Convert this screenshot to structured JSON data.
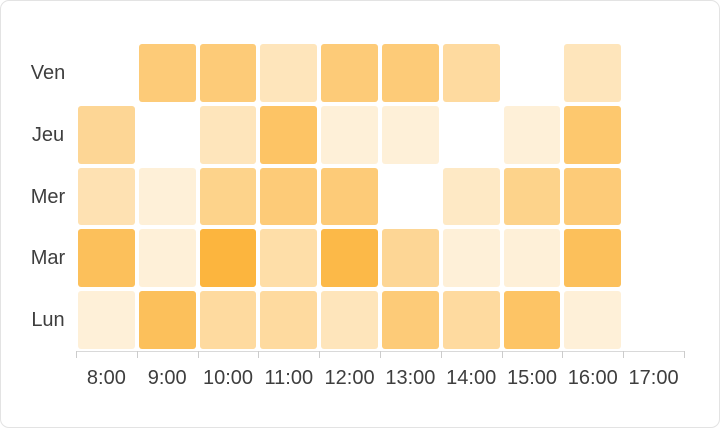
{
  "card": {
    "background": "#ffffff",
    "border_color": "#e3e3e3"
  },
  "chart_data": {
    "type": "heatmap",
    "title": "",
    "xlabel": "",
    "ylabel": "",
    "x_categories": [
      "8:00",
      "9:00",
      "10:00",
      "11:00",
      "12:00",
      "13:00",
      "14:00",
      "15:00",
      "16:00",
      "17:00"
    ],
    "y_categories_top_to_bottom": [
      "Ven",
      "Jeu",
      "Mer",
      "Mar",
      "Lun"
    ],
    "series": [
      {
        "name": "Ven",
        "values": [
          null,
          7,
          7,
          3.5,
          7,
          7,
          5,
          null,
          3.5,
          null
        ]
      },
      {
        "name": "Jeu",
        "values": [
          5.5,
          null,
          3.5,
          8,
          2,
          2,
          null,
          2,
          7.5,
          null
        ]
      },
      {
        "name": "Mer",
        "values": [
          4,
          2,
          6,
          7,
          7,
          null,
          3,
          6,
          7,
          null
        ]
      },
      {
        "name": "Mar",
        "values": [
          8.5,
          2,
          10,
          4.5,
          9.5,
          5.5,
          2,
          2,
          8.5,
          null
        ]
      },
      {
        "name": "Lun",
        "values": [
          2,
          8.5,
          5,
          5,
          3.5,
          7,
          5,
          8,
          2,
          null
        ]
      }
    ],
    "value_scale": {
      "min": 0,
      "max": 10,
      "empty": null
    },
    "colors": {
      "min": "#FFFFFF",
      "max": "#FCB53E"
    },
    "axis": {
      "line_color": "#d9d9d9",
      "tick_color": "#cccccc",
      "label_color": "#3e3e3e"
    },
    "legend": "none",
    "grid": "off"
  }
}
